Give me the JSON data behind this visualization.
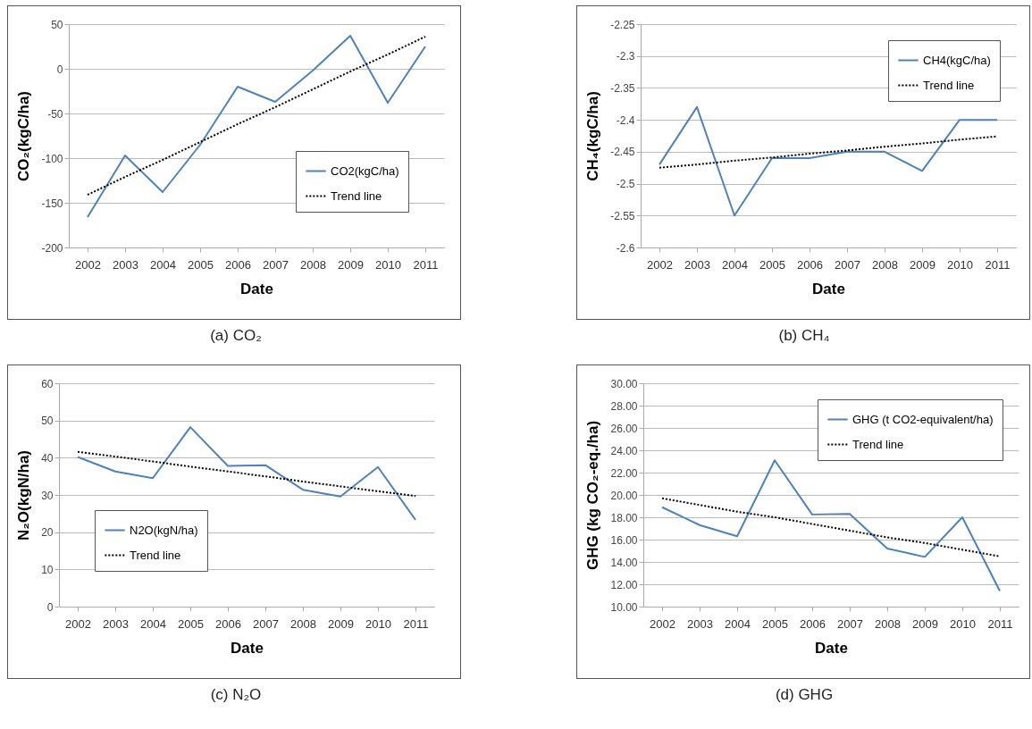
{
  "chart_data": [
    {
      "type": "line",
      "title": "(a) CO₂",
      "xlabel": "Date",
      "ylabel": "CO₂(kgC/ha)",
      "categories": [
        "2002",
        "2003",
        "2004",
        "2005",
        "2006",
        "2007",
        "2008",
        "2009",
        "2010",
        "2011"
      ],
      "ylim": [
        -200,
        50
      ],
      "yticks": [
        -200,
        -150,
        -100,
        -50,
        0,
        50
      ],
      "grid": "y",
      "legend": "bottom right",
      "series": [
        {
          "name": "CO2(kgC/ha)",
          "color": "#4f81bd",
          "line_style": "solid",
          "values": [
            -166,
            -97,
            -138,
            -85,
            -20,
            -37,
            -2,
            37,
            -38,
            25
          ]
        },
        {
          "name": "Trend line",
          "color": "#000000",
          "line_style": "dotted",
          "values": [
            -141,
            -121,
            -102,
            -82,
            -62,
            -43,
            -23,
            -3,
            16,
            36
          ]
        }
      ]
    },
    {
      "type": "line",
      "title": "(b) CH₄",
      "xlabel": "Date",
      "ylabel": "CH₄(kgC/ha)",
      "categories": [
        "2002",
        "2003",
        "2004",
        "2005",
        "2006",
        "2007",
        "2008",
        "2009",
        "2010",
        "2011"
      ],
      "ylim": [
        -2.6,
        -2.25
      ],
      "yticks": [
        -2.6,
        -2.55,
        -2.5,
        -2.45,
        -2.4,
        -2.35,
        -2.3,
        -2.25
      ],
      "grid": "y",
      "legend": "top right",
      "series": [
        {
          "name": "CH4(kgC/ha)",
          "color": "#4f81bd",
          "line_style": "solid",
          "values": [
            -2.47,
            -2.38,
            -2.55,
            -2.46,
            -2.46,
            -2.45,
            -2.45,
            -2.48,
            -2.4,
            -2.4
          ]
        },
        {
          "name": "Trend line",
          "color": "#000000",
          "line_style": "dotted",
          "values": [
            -2.475,
            -2.47,
            -2.464,
            -2.459,
            -2.453,
            -2.448,
            -2.442,
            -2.437,
            -2.431,
            -2.426
          ]
        }
      ]
    },
    {
      "type": "line",
      "title": "(c) N₂O",
      "xlabel": "Date",
      "ylabel": "N₂O(kgN/ha)",
      "categories": [
        "2002",
        "2003",
        "2004",
        "2005",
        "2006",
        "2007",
        "2008",
        "2009",
        "2010",
        "2011"
      ],
      "ylim": [
        0,
        60
      ],
      "yticks": [
        0,
        10,
        20,
        30,
        40,
        50,
        60
      ],
      "grid": "y",
      "legend": "bottom left",
      "series": [
        {
          "name": "N2O(kgN/ha)",
          "color": "#4f81bd",
          "line_style": "solid",
          "values": [
            40.2,
            36.3,
            34.5,
            48.2,
            37.8,
            38.0,
            31.4,
            29.6,
            37.5,
            23.3
          ]
        },
        {
          "name": "Trend line",
          "color": "#000000",
          "line_style": "dotted",
          "values": [
            41.6,
            40.3,
            39.0,
            37.6,
            36.3,
            35.0,
            33.6,
            32.3,
            31.0,
            29.7
          ]
        }
      ]
    },
    {
      "type": "line",
      "title": "(d) GHG",
      "xlabel": "Date",
      "ylabel": "GHG (kg CO₂-eq./ha)",
      "categories": [
        "2002",
        "2003",
        "2004",
        "2005",
        "2006",
        "2007",
        "2008",
        "2009",
        "2010",
        "2011"
      ],
      "ylim": [
        10,
        30
      ],
      "yticks": [
        {
          "value": 10,
          "label": "10.00"
        },
        {
          "value": 12,
          "label": "12.00"
        },
        {
          "value": 14,
          "label": "14.00"
        },
        {
          "value": 16,
          "label": "16.00"
        },
        {
          "value": 18,
          "label": "18.00"
        },
        {
          "value": 20,
          "label": "20.00"
        },
        {
          "value": 22,
          "label": "22.00"
        },
        {
          "value": 24,
          "label": "24.00"
        },
        {
          "value": 26,
          "label": "26.00"
        },
        {
          "value": 28,
          "label": "28.00"
        },
        {
          "value": 30,
          "label": "30.00"
        }
      ],
      "grid": "y",
      "legend": "top right",
      "series": [
        {
          "name": "GHG (t CO2-equivalent/ha)",
          "color": "#4f81bd",
          "line_style": "solid",
          "values": [
            18.9,
            17.3,
            16.3,
            23.1,
            18.25,
            18.3,
            15.2,
            14.45,
            18.0,
            11.4
          ]
        },
        {
          "name": "Trend line",
          "color": "#000000",
          "line_style": "dotted",
          "values": [
            19.7,
            19.1,
            18.5,
            18.0,
            17.4,
            16.8,
            16.2,
            15.7,
            15.1,
            14.5
          ]
        }
      ]
    }
  ]
}
